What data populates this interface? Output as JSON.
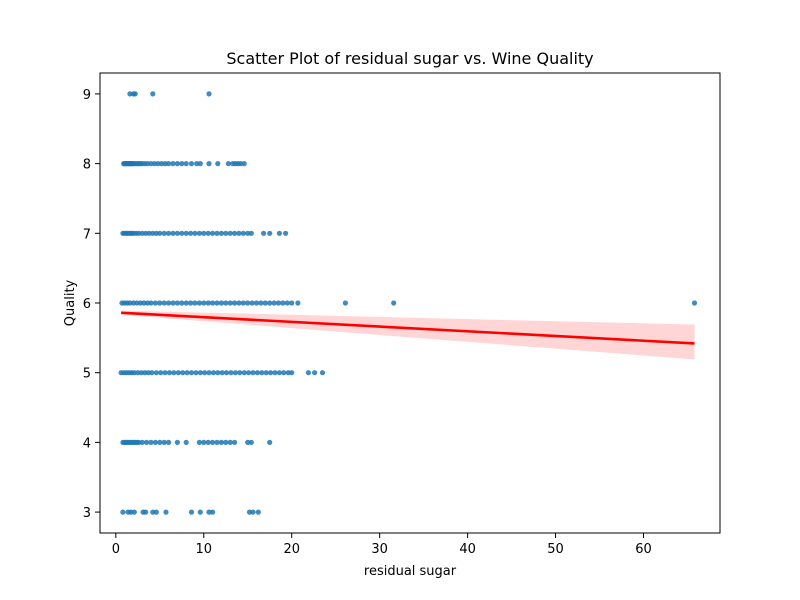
{
  "chart_data": {
    "type": "scatter",
    "title": "Scatter Plot of residual sugar vs. Wine Quality",
    "xlabel": "residual sugar",
    "ylabel": "Quality",
    "xlim": [
      -1.8,
      68.7
    ],
    "ylim": [
      2.7,
      9.3
    ],
    "x_ticks": [
      0,
      10,
      20,
      30,
      40,
      50,
      60
    ],
    "y_ticks": [
      3,
      4,
      5,
      6,
      7,
      8,
      9
    ],
    "grid": false,
    "colors": {
      "points": "#1f77b4",
      "regression_line": "#ff0000",
      "confidence_band": "#ffb3b3"
    },
    "series": [
      {
        "kind": "points",
        "groups": [
          {
            "y": 9,
            "x": [
              1.6,
              2.0,
              2.2,
              4.2,
              10.6
            ]
          },
          {
            "y": 8,
            "x": [
              0.9,
              1.0,
              1.1,
              1.2,
              1.3,
              1.4,
              1.5,
              1.6,
              1.7,
              1.8,
              1.9,
              2.0,
              2.2,
              2.4,
              2.6,
              2.8,
              3.0,
              3.3,
              3.6,
              4.0,
              4.4,
              4.8,
              5.2,
              5.6,
              6.0,
              6.5,
              7.0,
              7.5,
              8.0,
              8.6,
              9.2,
              9.6,
              10.6,
              11.6,
              12.8,
              13.3,
              13.6,
              13.9,
              14.2,
              14.6
            ]
          },
          {
            "y": 7,
            "x": [
              0.8,
              1.0,
              1.2,
              1.4,
              1.6,
              1.8,
              2.0,
              2.3,
              2.6,
              3.0,
              3.4,
              3.8,
              4.2,
              4.6,
              5.0,
              5.5,
              6.0,
              6.5,
              7.0,
              7.5,
              8.0,
              8.5,
              9.0,
              9.5,
              10.0,
              10.5,
              11.0,
              11.5,
              12.0,
              12.5,
              13.0,
              13.5,
              14.0,
              14.5,
              15.0,
              15.4,
              16.8,
              17.5,
              18.6,
              19.3
            ]
          },
          {
            "y": 6,
            "x": [
              0.7,
              1.0,
              1.3,
              1.6,
              2.0,
              2.4,
              2.8,
              3.2,
              3.6,
              4.0,
              4.5,
              5.0,
              5.5,
              6.0,
              6.5,
              7.0,
              7.5,
              8.0,
              8.5,
              9.0,
              9.5,
              10.0,
              10.5,
              11.0,
              11.5,
              12.0,
              12.5,
              13.0,
              13.5,
              14.0,
              14.5,
              15.0,
              15.5,
              16.0,
              16.5,
              17.0,
              17.5,
              18.0,
              18.5,
              19.0,
              19.5,
              20.0,
              20.7,
              26.1,
              31.6,
              65.8
            ]
          },
          {
            "y": 5,
            "x": [
              0.6,
              0.9,
              1.2,
              1.5,
              1.8,
              2.1,
              2.5,
              2.9,
              3.3,
              3.7,
              4.1,
              4.6,
              5.1,
              5.6,
              6.1,
              6.6,
              7.1,
              7.6,
              8.1,
              8.6,
              9.1,
              9.6,
              10.1,
              10.6,
              11.1,
              11.6,
              12.1,
              12.6,
              13.1,
              13.6,
              14.1,
              14.6,
              15.1,
              15.6,
              16.1,
              16.6,
              17.1,
              17.6,
              18.1,
              18.6,
              19.1,
              19.6,
              20.0,
              21.9,
              22.6,
              23.5
            ]
          },
          {
            "y": 4,
            "x": [
              0.8,
              1.0,
              1.2,
              1.4,
              1.6,
              1.8,
              2.0,
              2.2,
              2.4,
              2.6,
              3.0,
              3.5,
              4.0,
              4.5,
              5.0,
              5.5,
              6.0,
              7.0,
              8.0,
              9.5,
              10.0,
              10.5,
              11.0,
              11.5,
              12.0,
              12.5,
              13.0,
              13.5,
              15.0,
              15.4,
              17.5
            ]
          },
          {
            "y": 3,
            "x": [
              0.8,
              1.4,
              1.7,
              2.1,
              3.1,
              3.4,
              4.2,
              4.6,
              5.7,
              8.6,
              9.6,
              10.6,
              11.0,
              15.2,
              15.6,
              16.2
            ]
          }
        ]
      },
      {
        "kind": "regression",
        "x": [
          0.6,
          65.8
        ],
        "y": [
          5.86,
          5.42
        ],
        "band_lower": [
          5.83,
          5.19
        ],
        "band_upper": [
          5.89,
          5.69
        ]
      }
    ]
  }
}
